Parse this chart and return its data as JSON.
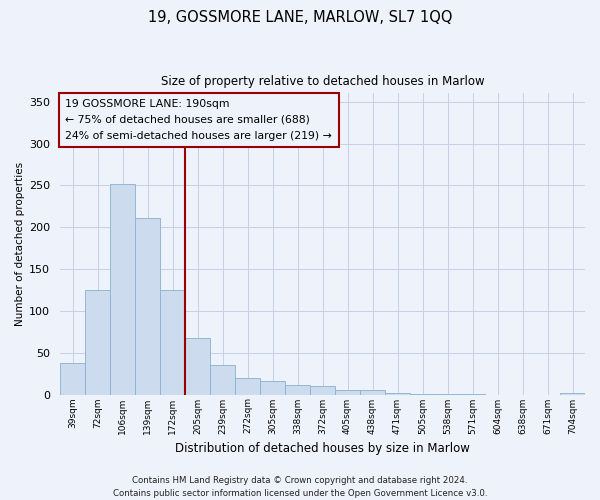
{
  "title": "19, GOSSMORE LANE, MARLOW, SL7 1QQ",
  "subtitle": "Size of property relative to detached houses in Marlow",
  "xlabel": "Distribution of detached houses by size in Marlow",
  "ylabel": "Number of detached properties",
  "categories": [
    "39sqm",
    "72sqm",
    "106sqm",
    "139sqm",
    "172sqm",
    "205sqm",
    "239sqm",
    "272sqm",
    "305sqm",
    "338sqm",
    "372sqm",
    "405sqm",
    "438sqm",
    "471sqm",
    "505sqm",
    "538sqm",
    "571sqm",
    "604sqm",
    "638sqm",
    "671sqm",
    "704sqm"
  ],
  "values": [
    38,
    125,
    252,
    211,
    125,
    68,
    35,
    20,
    16,
    11,
    10,
    5,
    5,
    2,
    1,
    1,
    1,
    0,
    0,
    0,
    2
  ],
  "bar_color": "#ccdcee",
  "bar_edge_color": "#8ab0d0",
  "vline_color": "#990000",
  "annotation_lines": [
    "19 GOSSMORE LANE: 190sqm",
    "← 75% of detached houses are smaller (688)",
    "24% of semi-detached houses are larger (219) →"
  ],
  "annotation_box_color": "#990000",
  "ylim": [
    0,
    360
  ],
  "yticks": [
    0,
    50,
    100,
    150,
    200,
    250,
    300,
    350
  ],
  "footer_line1": "Contains HM Land Registry data © Crown copyright and database right 2024.",
  "footer_line2": "Contains public sector information licensed under the Open Government Licence v3.0.",
  "bg_color": "#eef2fb",
  "grid_color": "#c5d0e8"
}
